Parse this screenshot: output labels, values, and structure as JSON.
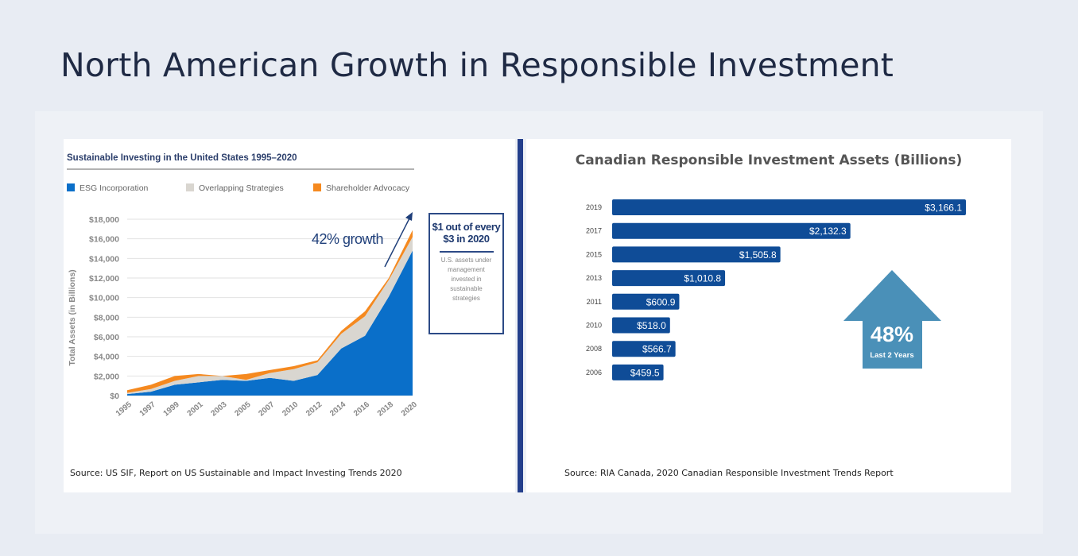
{
  "page": {
    "title": "North American Growth in Responsible Investment"
  },
  "us_chart": {
    "source": "Source: US SIF, Report on US Sustainable and Impact Investing Trends 2020",
    "growth_label": "42% growth",
    "callout": {
      "headline": "$1 out of every $3 in 2020",
      "body": "U.S. assets under management invested in sustainable strategies"
    }
  },
  "canada_chart": {
    "source": "Source: RIA Canada, 2020 Canadian Responsible Investment Trends Report",
    "badge": {
      "value": "48%",
      "label": "Last 2 Years",
      "color": "#4a90b8"
    }
  },
  "chart_data": [
    {
      "type": "area",
      "stacked": true,
      "title": "Sustainable Investing in the United States 1995–2020",
      "xlabel": "",
      "ylabel": "Total Assets (in Billions)",
      "ylim": [
        0,
        18000
      ],
      "yticks": [
        "$0",
        "$2,000",
        "$4,000",
        "$6,000",
        "$8,000",
        "$10,000",
        "$12,000",
        "$14,000",
        "$16,000",
        "$18,000"
      ],
      "grid": true,
      "legend": "top",
      "categories": [
        "1995",
        "1997",
        "1999",
        "2001",
        "2003",
        "2005",
        "2007",
        "2010",
        "2012",
        "2014",
        "2016",
        "2018",
        "2020"
      ],
      "series": [
        {
          "name": "ESG Incorporation",
          "color": "#0a6fc9",
          "values": [
            150,
            400,
            1100,
            1350,
            1600,
            1500,
            1800,
            1500,
            2100,
            4800,
            6100,
            10100,
            14800
          ]
        },
        {
          "name": "Overlapping Strategies",
          "color": "#d9d6d0",
          "values": [
            120,
            270,
            400,
            650,
            400,
            100,
            500,
            1200,
            1300,
            1500,
            2000,
            1700,
            1400
          ]
        },
        {
          "name": "Shareholder Advocacy",
          "color": "#f5891f",
          "values": [
            280,
            430,
            500,
            200,
            0,
            600,
            300,
            300,
            200,
            300,
            500,
            200,
            700
          ]
        }
      ]
    },
    {
      "type": "bar",
      "orientation": "horizontal",
      "title": "Canadian Responsible Investment Assets (Billions)",
      "categories": [
        "2019",
        "2017",
        "2015",
        "2013",
        "2011",
        "2010",
        "2008",
        "2006"
      ],
      "values": [
        3166.1,
        2132.3,
        1505.8,
        1010.8,
        600.9,
        518.0,
        566.7,
        459.5
      ],
      "labels": [
        "$3,166.1",
        "$2,132.3",
        "$1,505.8",
        "$1,010.8",
        "$600.9",
        "$518.0",
        "$566.7",
        "$459.5"
      ],
      "color": "#0f4c97"
    }
  ]
}
